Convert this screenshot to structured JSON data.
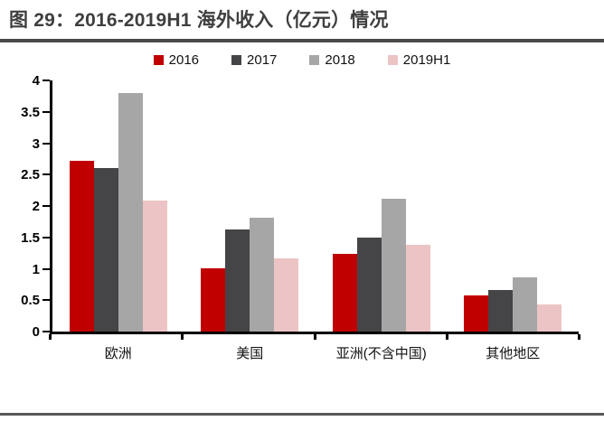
{
  "figure": {
    "title": "图 29：2016-2019H1 海外收入（亿元）情况",
    "title_color": "#3f3f3f",
    "title_rule_color": "#4a4a4a",
    "footer_rule_color": "#595959",
    "background_color": "#ffffff",
    "axis_color": "#000000"
  },
  "chart_data": {
    "type": "bar",
    "title": "图 29：2016-2019H1 海外收入（亿元）情况",
    "xlabel": "",
    "ylabel": "",
    "ylim": [
      0,
      4
    ],
    "yticks": [
      "0",
      "0.5",
      "1",
      "1.5",
      "2",
      "2.5",
      "3",
      "3.5",
      "4"
    ],
    "grid": false,
    "legend_position": "top",
    "categories": [
      "欧洲",
      "美国",
      "亚洲(不含中国)",
      "其他地区"
    ],
    "series": [
      {
        "name": "2016",
        "color": "#c00000",
        "values": [
          2.72,
          1.01,
          1.24,
          0.58
        ]
      },
      {
        "name": "2017",
        "color": "#454547",
        "values": [
          2.6,
          1.62,
          1.5,
          0.66
        ]
      },
      {
        "name": "2018",
        "color": "#a6a6a6",
        "values": [
          3.8,
          1.82,
          2.11,
          0.87
        ]
      },
      {
        "name": "2019H1",
        "color": "#ecc4c5",
        "values": [
          2.09,
          1.16,
          1.38,
          0.43
        ]
      }
    ]
  }
}
